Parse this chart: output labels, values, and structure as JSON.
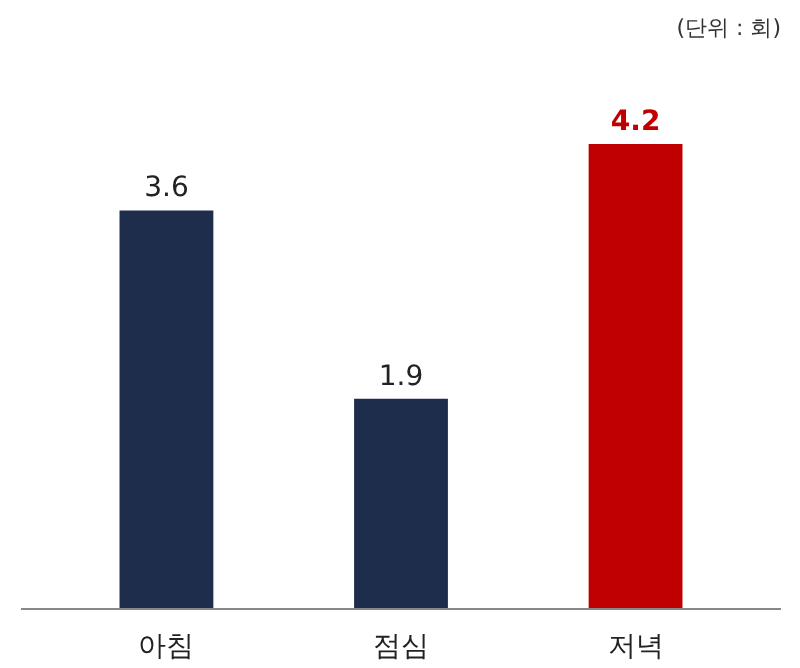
{
  "chart_data": {
    "type": "bar",
    "annotations": [
      "(단위 : 회)"
    ],
    "categories": [
      "아침",
      "점심",
      "저녁"
    ],
    "values": [
      3.6,
      1.9,
      4.2
    ],
    "colors": [
      "#1f2d4d",
      "#1f2d4d",
      "#c00000"
    ],
    "data_labels": true
  }
}
